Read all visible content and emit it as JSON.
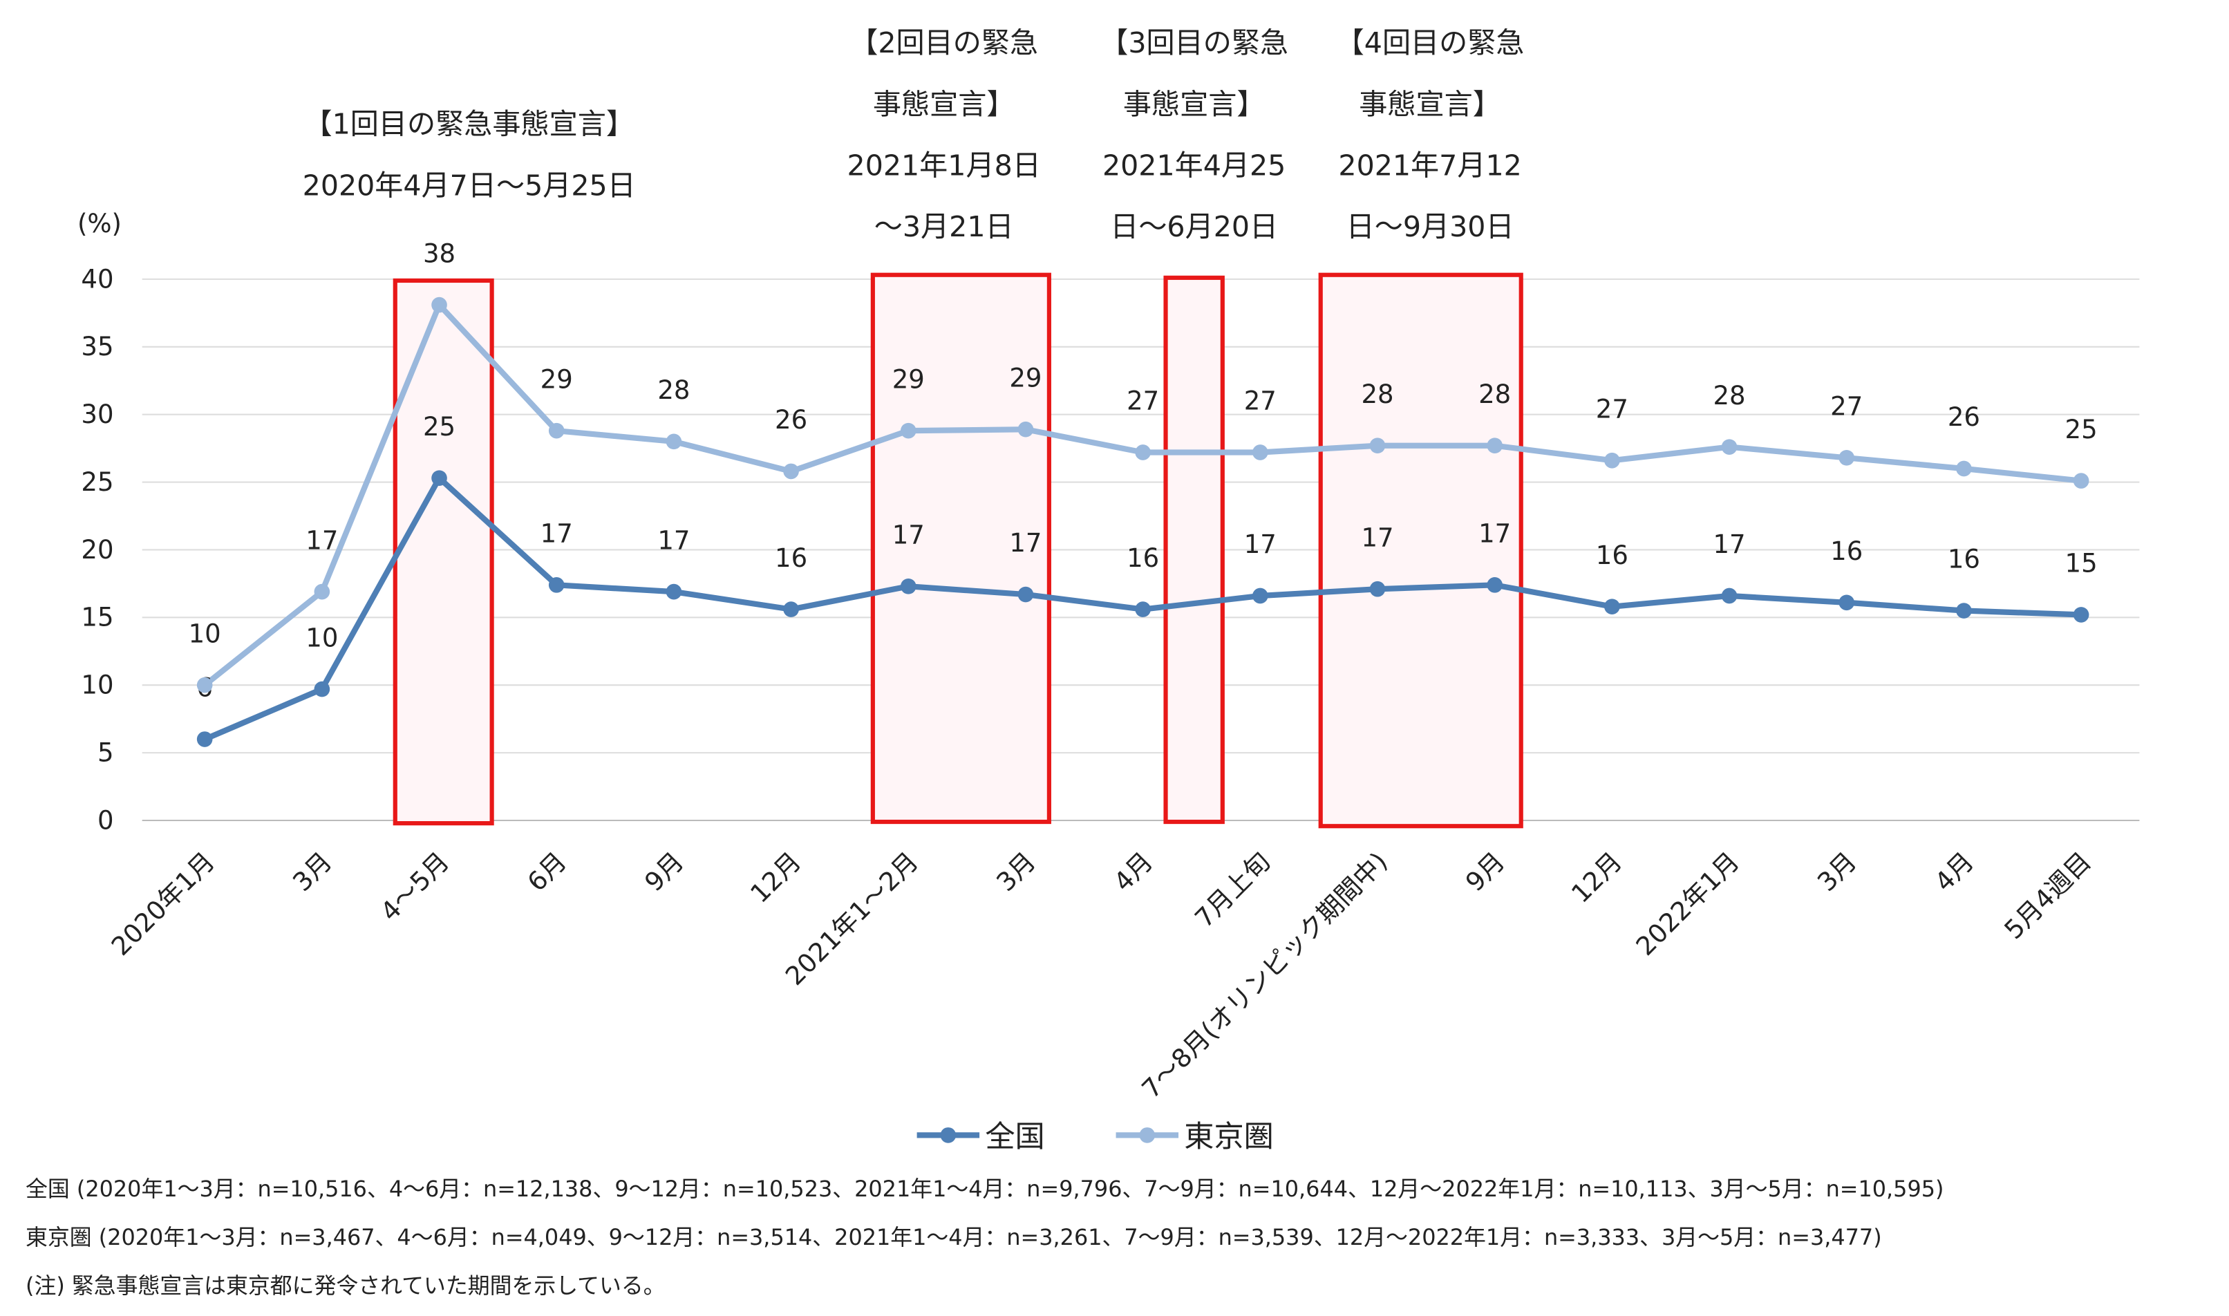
{
  "chart_data": {
    "type": "line",
    "y_label": "(%)",
    "categories": [
      "2020年1月",
      "3月",
      "4～5月",
      "6月",
      "9月",
      "12月",
      "2021年1～2月",
      "3月",
      "4月",
      "7月上旬",
      "7～8月(オリンピック期間中)",
      "9月",
      "12月",
      "2022年1月",
      "3月",
      "4月",
      "5月4週目"
    ],
    "series": [
      {
        "name": "全国",
        "color": "#4e7fb5",
        "values": [
          6.0,
          9.7,
          25.3,
          17.4,
          16.9,
          15.6,
          17.3,
          16.7,
          15.6,
          16.6,
          17.1,
          17.4,
          15.8,
          16.6,
          16.1,
          15.5,
          15.2
        ],
        "value_labels": [
          "6",
          "10",
          "25",
          "17",
          "17",
          "16",
          "17",
          "17",
          "16",
          "17",
          "17",
          "17",
          "16",
          "17",
          "16",
          "16",
          "15"
        ]
      },
      {
        "name": "東京圏",
        "color": "#9ab8dc",
        "values": [
          10.0,
          16.9,
          38.1,
          28.8,
          28.0,
          25.8,
          28.8,
          28.9,
          27.2,
          27.2,
          27.7,
          27.7,
          26.6,
          27.6,
          26.8,
          26.0,
          25.1
        ],
        "value_labels": [
          "10",
          "17",
          "38",
          "29",
          "28",
          "26",
          "29",
          "29",
          "27",
          "27",
          "28",
          "28",
          "27",
          "28",
          "27",
          "26",
          "25"
        ]
      }
    ],
    "ylim": [
      0,
      40
    ],
    "yticks": [
      0,
      5,
      10,
      15,
      20,
      25,
      30,
      35,
      40
    ],
    "grid": true,
    "annotations": [
      {
        "lines": [
          "【1回目の緊急事態宣言】",
          "2020年4月7日～5月25日"
        ]
      },
      {
        "lines": [
          "【2回目の緊急",
          "事態宣言】",
          "2021年1月8日",
          "～3月21日"
        ]
      },
      {
        "lines": [
          "【3回目の緊急",
          "事態宣言】",
          "2021年4月25",
          "日～6月20日"
        ]
      },
      {
        "lines": [
          "【4回目の緊急",
          "事態宣言】",
          "2021年7月12",
          "日～9月30日"
        ]
      }
    ],
    "notes": [
      "全国 (2020年1～3月：n=10,516、4～6月：n=12,138、9～12月：n=10,523、2021年1～4月：n=9,796、7～9月：n=10,644、12月～2022年1月：n=10,113、3月～5月：n=10,595)",
      "東京圏 (2020年1～3月：n=3,467、4～6月：n=4,049、9～12月：n=3,514、2021年1～4月：n=3,261、7～9月：n=3,539、12月～2022年1月：n=3,333、3月～5月：n=3,477)",
      "(注) 緊急事態宣言は東京都に発令されていた期間を示している。"
    ]
  }
}
